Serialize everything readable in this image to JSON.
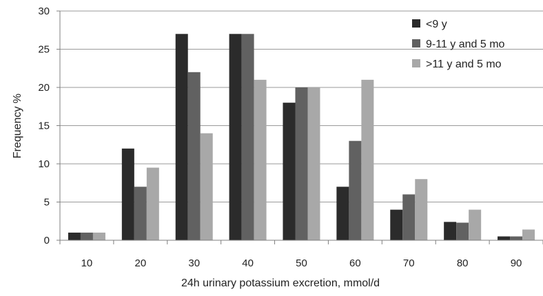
{
  "chart_data": {
    "type": "bar",
    "title": "",
    "xlabel": "24h urinary potassium excretion, mmol/d",
    "ylabel": "Frequency %",
    "categories": [
      "10",
      "20",
      "30",
      "40",
      "50",
      "60",
      "70",
      "80",
      "90"
    ],
    "ylim": [
      0,
      30
    ],
    "yticks": [
      "0",
      "5",
      "10",
      "15",
      "20",
      "25",
      "30"
    ],
    "grid": "horizontal",
    "legend_position": "top-right",
    "series": [
      {
        "name": "<9 y",
        "color": "#2b2b2b",
        "values": [
          1,
          12,
          27,
          27,
          18,
          7,
          4,
          2.4,
          0.5
        ]
      },
      {
        "name": "9-11 y and 5 mo",
        "color": "#616161",
        "values": [
          1,
          7,
          22,
          27,
          20,
          13,
          6,
          2.3,
          0.5
        ]
      },
      {
        "name": ">11 y and 5 mo",
        "color": "#a8a8a8",
        "values": [
          1,
          9.5,
          14,
          21,
          20,
          21,
          8,
          4,
          1.4
        ]
      }
    ]
  }
}
